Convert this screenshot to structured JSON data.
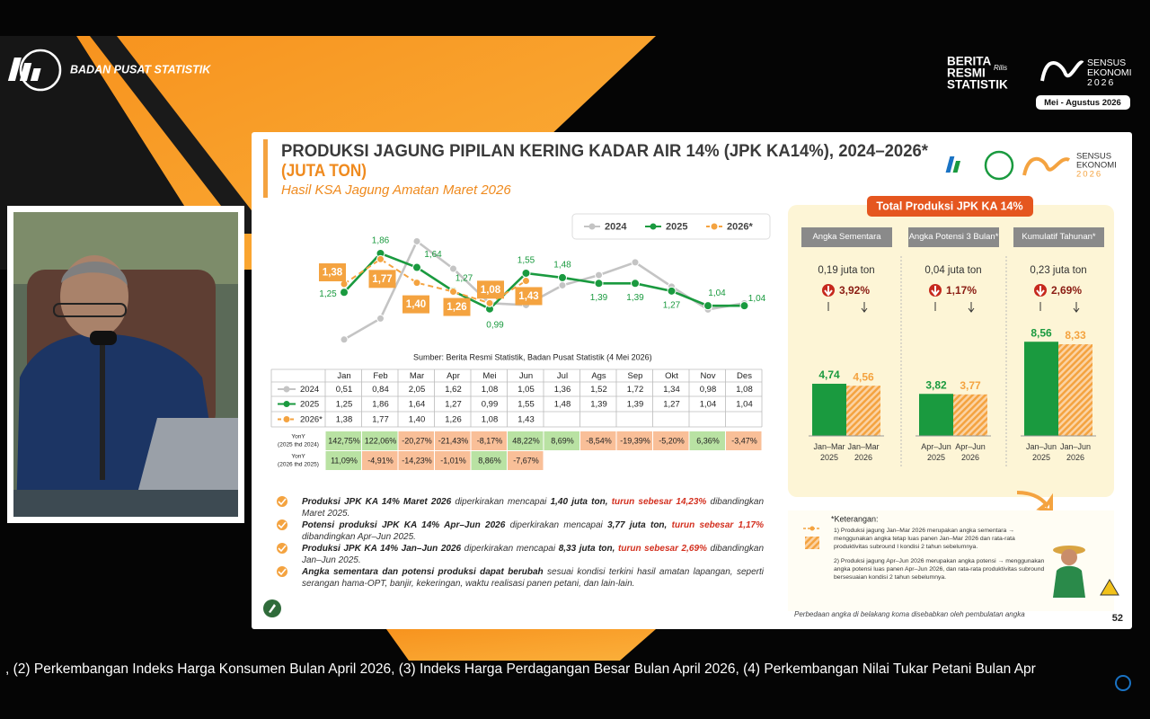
{
  "header": {
    "org": "BADAN PUSAT STATISTIK",
    "brs": [
      "BERITA",
      "RESMI",
      "STATISTIK"
    ],
    "brs_tag": "Rilis",
    "sensus": [
      "SENSUS",
      "EKONOMI",
      "2026"
    ],
    "period": "Mei - Agustus 2026"
  },
  "slide": {
    "title": "PRODUKSI JAGUNG PIPILAN KERING KADAR AIR 14% (JPK KA14%), 2024–2026*",
    "unit": "(JUTA TON)",
    "subtitle": "Hasil KSA Jagung Amatan Maret 2026",
    "logo": [
      "SENSUS",
      "EKONOMI",
      "2026"
    ],
    "source": "Sumber: Berita Resmi Statistik, Badan Pusat Statistik (4 Mei 2026)",
    "table": {
      "rows": [
        [
          "0,51",
          "0,84",
          "2,05",
          "1,62",
          "1,08",
          "1,05",
          "1,36",
          "1,52",
          "1,72",
          "1,34",
          "0,98",
          "1,08"
        ],
        [
          "1,25",
          "1,86",
          "1,64",
          "1,27",
          "0,99",
          "1,55",
          "1,48",
          "1,39",
          "1,39",
          "1,27",
          "1,04",
          "1,04"
        ],
        [
          "1,38",
          "1,77",
          "1,40",
          "1,26",
          "1,08",
          "1,43"
        ]
      ],
      "yoy": [
        {
          "label": "YonY",
          "sublabel": "(2025 thd 2024)",
          "values": [
            "142,75%",
            "122,06%",
            "-20,27%",
            "-21,43%",
            "-8,17%",
            "48,22%",
            "8,69%",
            "-8,54%",
            "-19,39%",
            "-5,20%",
            "6,36%",
            "-3,47%"
          ]
        },
        {
          "label": "YonY",
          "sublabel": "(2026 thd 2025)",
          "values": [
            "11,09%",
            "-4,91%",
            "-14,23%",
            "-1,01%",
            "8,86%",
            "-7,67%"
          ]
        }
      ]
    },
    "bullets": [
      [
        "Produksi JPK KA 14% Maret 2026",
        "diperkirakan mencapai",
        "1,40 juta ton,",
        "turun sebesar 14,23%",
        "dibandingkan Maret 2025."
      ],
      [
        "Potensi produksi JPK KA 14% Apr–Jun 2026",
        "diperkirakan mencapai",
        "3,77 juta ton,",
        "turun sebesar 1,17%",
        "dibandingkan Apr–Jun 2025."
      ],
      [
        "Produksi JPK KA 14% Jan–Jun 2026",
        "diperkirakan mencapai",
        "8,33 juta ton,",
        "turun sebesar 2,69%",
        "dibandingkan Jan–Jun 2025."
      ],
      [
        "Angka sementara dan potensi produksi dapat berubah",
        "sesuai kondisi terkini hasil amatan lapangan, seperti serangan hama-OPT, banjir, kekeringan, waktu realisasi panen petani, dan lain-lain."
      ]
    ],
    "notes": {
      "title": "*Keterangan:",
      "items": [
        "1)  Produksi jagung Jan–Mar 2026 merupakan angka sementara → menggunakan angka tetap luas panen Jan–Mar 2026 dan rata-rata produktivitas subround I kondisi 2 tahun sebelumnya.",
        "2)  Produksi jagung Apr–Jun 2026 merupakan angka potensi → menggunakan angka potensi luas panen Apr–Jun 2026, dan rata-rata produktivitas subround bersesuaian kondisi 2 tahun sebelumnya."
      ]
    },
    "footnote": "Perbedaan angka di belakang koma disebabkan oleh pembulatan angka",
    "page": "52"
  },
  "ticker": ", (2) Perkembangan Indeks Harga Konsumen Bulan April 2026, (3) Indeks Harga Perdagangan Besar Bulan April 2026, (4) Perkembangan Nilai Tukar Petani Bulan Apr",
  "chart_data": [
    {
      "type": "line",
      "categories": [
        "Jan",
        "Feb",
        "Mar",
        "Apr",
        "Mei",
        "Jun",
        "Jul",
        "Ags",
        "Sep",
        "Okt",
        "Nov",
        "Des"
      ],
      "series": [
        {
          "name": "2024",
          "color": "#c4c4c4",
          "values": [
            0.51,
            0.84,
            2.05,
            1.62,
            1.08,
            1.05,
            1.36,
            1.52,
            1.72,
            1.34,
            0.98,
            1.08
          ]
        },
        {
          "name": "2025",
          "color": "#1a9a3f",
          "values": [
            1.25,
            1.86,
            1.64,
            1.27,
            0.99,
            1.55,
            1.48,
            1.39,
            1.39,
            1.27,
            1.04,
            1.04
          ],
          "value_labels": [
            "1,25",
            "1,86",
            "1,64",
            "1,27",
            "0,99",
            "1,55",
            "1,48",
            "1,39",
            "1,39",
            "1,27",
            "1,04",
            "1,04"
          ]
        },
        {
          "name": "2026*",
          "color": "#f4a340",
          "dashed": true,
          "values": [
            1.38,
            1.77,
            1.4,
            1.26,
            1.08,
            1.43,
            null,
            null,
            null,
            null,
            null,
            null
          ],
          "value_labels": [
            "1,38",
            "1,77",
            "1,40",
            "1,26",
            "1,08",
            "1,43",
            null,
            null,
            null,
            null,
            null,
            null
          ]
        }
      ]
    },
    {
      "type": "bar",
      "title": "Total Produksi JPK KA 14%",
      "colors": [
        "#1a9a3f",
        "#f4a340"
      ],
      "groups": [
        {
          "title": "Angka Sementara",
          "change": "0,19 juta ton",
          "percent": "3,92%",
          "categories": [
            "Jan–Mar 2025",
            "Jan–Mar 2026"
          ],
          "values": [
            4.74,
            4.56
          ],
          "value_labels": [
            "4,74",
            "4,56"
          ]
        },
        {
          "title": "Angka Potensi 3 Bulan*",
          "change": "0,04 juta ton",
          "percent": "1,17%",
          "categories": [
            "Apr–Jun 2025",
            "Apr–Jun 2026"
          ],
          "values": [
            3.82,
            3.77
          ],
          "value_labels": [
            "3,82",
            "3,77"
          ]
        },
        {
          "title": "Kumulatif Tahunan*",
          "change": "0,23 juta ton",
          "percent": "2,69%",
          "categories": [
            "Jan–Jun 2025",
            "Jan–Jun 2026"
          ],
          "values": [
            8.56,
            8.33
          ],
          "value_labels": [
            "8,56",
            "8,33"
          ]
        }
      ]
    }
  ]
}
